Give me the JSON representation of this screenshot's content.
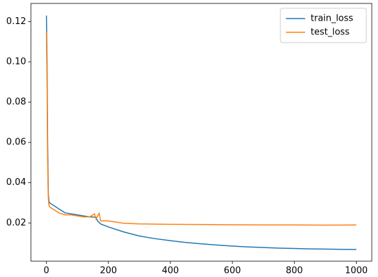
{
  "chart_data": {
    "type": "line",
    "series": [
      {
        "name": "train_loss",
        "color": "#1f77b4",
        "x": [
          0,
          2,
          4,
          6,
          8,
          10,
          20,
          40,
          60,
          80,
          100,
          120,
          140,
          160,
          165,
          175,
          200,
          250,
          300,
          350,
          400,
          450,
          500,
          550,
          600,
          650,
          700,
          750,
          800,
          850,
          900,
          950,
          1000
        ],
        "values": [
          0.123,
          0.1,
          0.06,
          0.035,
          0.031,
          0.03,
          0.029,
          0.027,
          0.025,
          0.0245,
          0.024,
          0.0235,
          0.023,
          0.0228,
          0.021,
          0.0195,
          0.018,
          0.0155,
          0.0135,
          0.0122,
          0.0112,
          0.0103,
          0.0096,
          0.009,
          0.0085,
          0.0081,
          0.0078,
          0.0075,
          0.0073,
          0.0071,
          0.007,
          0.0069,
          0.0068
        ]
      },
      {
        "name": "test_loss",
        "color": "#ff7f0e",
        "x": [
          0,
          2,
          4,
          6,
          8,
          10,
          20,
          40,
          60,
          80,
          100,
          120,
          140,
          155,
          160,
          170,
          175,
          200,
          250,
          300,
          400,
          500,
          600,
          700,
          800,
          900,
          1000
        ],
        "values": [
          0.115,
          0.09,
          0.05,
          0.033,
          0.029,
          0.028,
          0.027,
          0.025,
          0.024,
          0.024,
          0.0235,
          0.023,
          0.023,
          0.0245,
          0.022,
          0.0248,
          0.021,
          0.021,
          0.0198,
          0.0195,
          0.0193,
          0.0192,
          0.0191,
          0.019,
          0.019,
          0.0189,
          0.019
        ]
      }
    ],
    "xlim": [
      -50,
      1050
    ],
    "xticks": [
      0,
      200,
      400,
      600,
      800,
      1000
    ],
    "ylim": [
      0.001,
      0.129
    ],
    "yticks": [
      0.02,
      0.04,
      0.06,
      0.08,
      {
        "value": 0.1,
        "label": "0.10"
      },
      0.12
    ],
    "legend": "upper right"
  }
}
